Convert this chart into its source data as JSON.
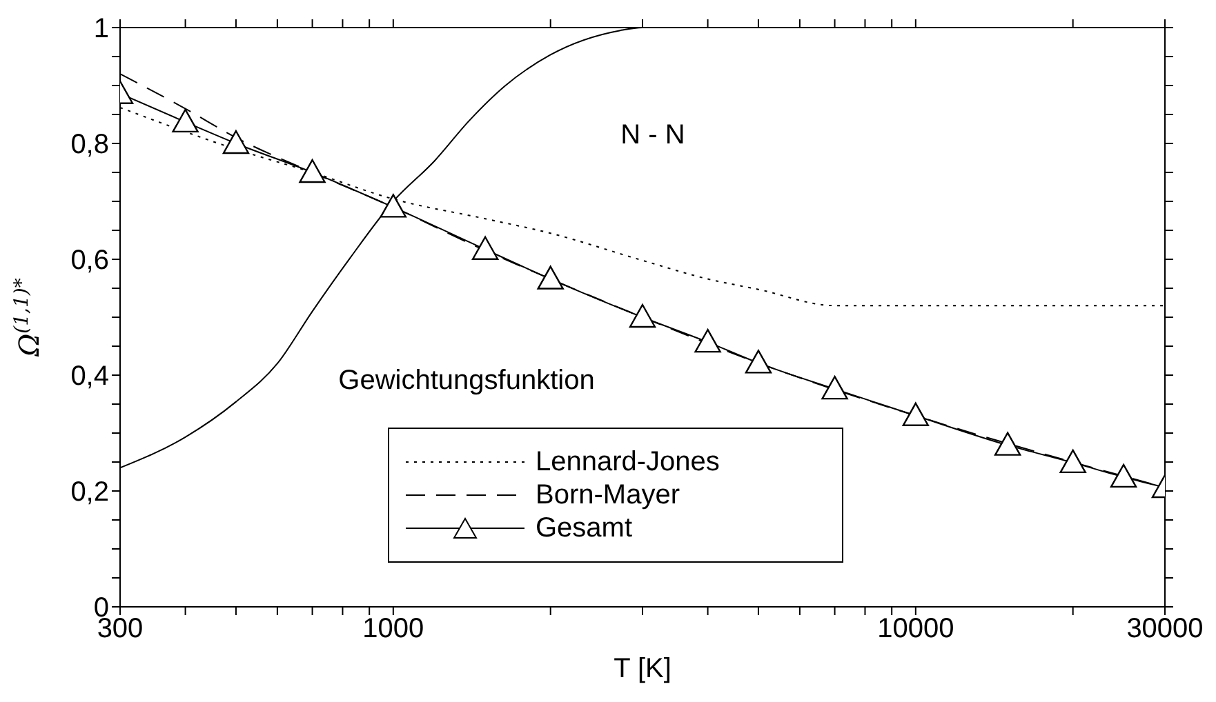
{
  "chart_data": {
    "type": "line",
    "xlabel": "T [K]",
    "ylabel": "Ω$^{(1,1)*}$",
    "log": "x",
    "legend": "bottom",
    "xlim": [
      300,
      30000
    ],
    "xticks": [
      300,
      {
        "value": 400,
        "label": null
      },
      {
        "value": 500,
        "label": null
      },
      {
        "value": 600,
        "label": null
      },
      {
        "value": 700,
        "label": null
      },
      {
        "value": 800,
        "label": null
      },
      {
        "value": 900,
        "label": null
      },
      1000,
      {
        "value": 2000,
        "label": null
      },
      {
        "value": 3000,
        "label": null
      },
      {
        "value": 4000,
        "label": null
      },
      {
        "value": 5000,
        "label": null
      },
      {
        "value": 6000,
        "label": null
      },
      {
        "value": 7000,
        "label": null
      },
      {
        "value": 8000,
        "label": null
      },
      {
        "value": 9000,
        "label": null
      },
      10000,
      {
        "value": 20000,
        "label": null
      },
      30000
    ],
    "ylim": [
      0,
      1
    ],
    "yticks": [
      0,
      {
        "value": 0.05,
        "label": null
      },
      {
        "value": 0.1,
        "label": null
      },
      {
        "value": 0.15,
        "label": null
      },
      {
        "value": 0.2,
        "label": "0,2"
      },
      {
        "value": 0.25,
        "label": null
      },
      {
        "value": 0.3,
        "label": null
      },
      {
        "value": 0.35,
        "label": null
      },
      {
        "value": 0.4,
        "label": "0,4"
      },
      {
        "value": 0.45,
        "label": null
      },
      {
        "value": 0.5,
        "label": null
      },
      {
        "value": 0.55,
        "label": null
      },
      {
        "value": 0.6,
        "label": "0,6"
      },
      {
        "value": 0.65,
        "label": null
      },
      {
        "value": 0.7,
        "label": null
      },
      {
        "value": 0.75,
        "label": null
      },
      {
        "value": 0.8,
        "label": "0,8"
      },
      {
        "value": 0.85,
        "label": null
      },
      {
        "value": 0.9,
        "label": null
      },
      {
        "value": 0.95,
        "label": null
      },
      1
    ],
    "series": [
      {
        "name": "Lennard-Jones",
        "color": "#000000",
        "line_style": "dotted",
        "x": [
          300,
          500,
          700,
          1000,
          1500,
          2000,
          3000,
          4000,
          5000,
          7000,
          10000,
          30000
        ],
        "values": [
          0.862,
          0.79,
          0.75,
          0.704,
          0.67,
          0.645,
          0.598,
          0.566,
          0.548,
          0.52,
          0.52,
          0.52
        ]
      },
      {
        "name": "Born-Mayer",
        "color": "#000000",
        "line_style": "dashed",
        "x": [
          300,
          400,
          500,
          700,
          1000,
          1500,
          2000,
          3000,
          5000,
          10000,
          30000
        ],
        "values": [
          0.92,
          0.86,
          0.81,
          0.75,
          0.69,
          0.615,
          0.566,
          0.5,
          0.421,
          0.33,
          0.206
        ]
      },
      {
        "name": "Gesamt",
        "color": "#000000",
        "line_style": "solid",
        "marker": "triangle",
        "x": [
          300,
          400,
          500,
          700,
          1000,
          1500,
          2000,
          3000,
          4000,
          5000,
          7000,
          10000,
          15000,
          20000,
          25000,
          30000
        ],
        "values": [
          0.886,
          0.837,
          0.8,
          0.75,
          0.69,
          0.617,
          0.566,
          0.5,
          0.457,
          0.421,
          0.376,
          0.33,
          0.279,
          0.249,
          0.224,
          0.206
        ]
      },
      {
        "color": "#000000",
        "line_style": "solid",
        "x": [
          300,
          400,
          500,
          600,
          700,
          825,
          1000,
          1200,
          1400,
          1640,
          2000,
          2720,
          3000,
          10000,
          30000
        ],
        "values": [
          0.24,
          0.293,
          0.354,
          0.42,
          0.51,
          0.601,
          0.7,
          0.77,
          0.84,
          0.9,
          0.953,
          0.995,
          1,
          1,
          1
        ]
      }
    ],
    "annotations": [
      "N - N",
      "Gewichtungsfunktion"
    ]
  }
}
